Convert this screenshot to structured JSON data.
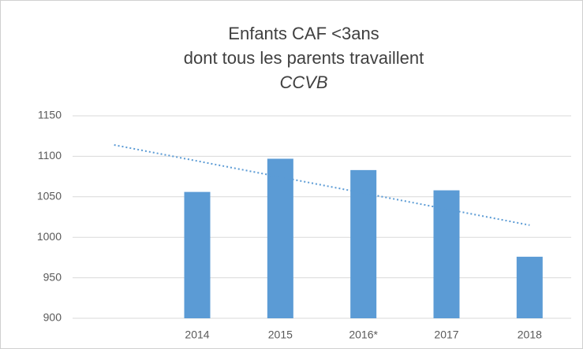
{
  "chart_data": {
    "type": "bar",
    "title": [
      "Enfants CAF <3ans",
      "dont tous les parents travaillent"
    ],
    "subtitle": "CCVB",
    "categories": [
      null,
      "2014",
      "2015",
      "2016*",
      "2017",
      "2018"
    ],
    "values": [
      null,
      1056,
      1097,
      1083,
      1058,
      976
    ],
    "color": "#5b9bd5",
    "ylim": [
      900,
      1150
    ],
    "yticks": [
      900,
      950,
      1000,
      1050,
      1100,
      1150
    ],
    "grid": true,
    "trendline": {
      "start": 1114,
      "end": 1015,
      "color": "#5b9bd5",
      "style": "dotted"
    }
  }
}
